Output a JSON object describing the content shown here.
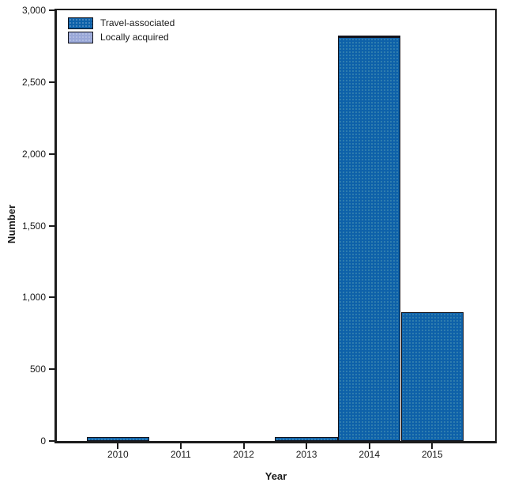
{
  "chart_data": {
    "type": "bar",
    "stacked": true,
    "title": "",
    "xlabel": "Year",
    "ylabel": "Number",
    "categories": [
      "2010",
      "2011",
      "2012",
      "2013",
      "2014",
      "2015"
    ],
    "series": [
      {
        "name": "Travel-associated",
        "color": "#0e61a9",
        "values": [
          25,
          0,
          0,
          25,
          2811,
          896
        ]
      },
      {
        "name": "Locally acquired",
        "color": "#9aa8d8",
        "values": [
          0,
          0,
          0,
          0,
          12,
          0
        ]
      }
    ],
    "ylim": [
      0,
      3000
    ],
    "ytick_interval": 500,
    "ytick_labels": [
      "0",
      "500",
      "1,000",
      "1,500",
      "2,000",
      "2,500",
      "3,000"
    ],
    "bar_width_fraction": 1.0,
    "grid": false,
    "frame": true,
    "legend_position": "upper-left-inside",
    "axis_color": "#1c1c1c",
    "background_color": "#ffffff"
  }
}
